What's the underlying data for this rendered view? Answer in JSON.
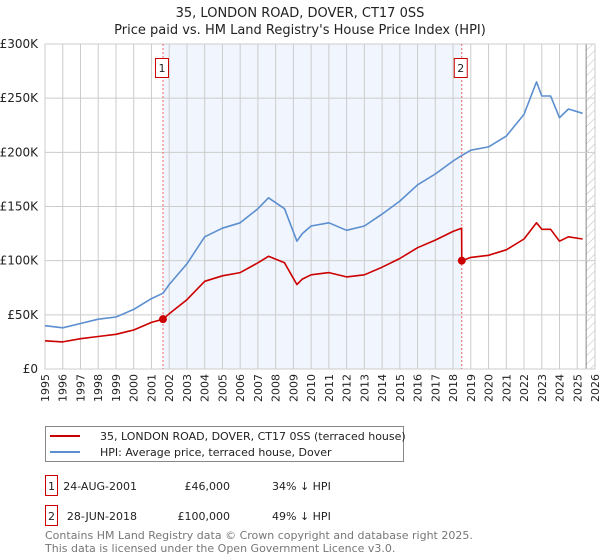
{
  "chart_data": {
    "type": "line",
    "title": "35, LONDON ROAD, DOVER, CT17 0SS",
    "subtitle": "Price paid vs. HM Land Registry's House Price Index (HPI)",
    "xlim": [
      1995,
      2026
    ],
    "ylim": [
      0,
      300000
    ],
    "x_ticks": [
      "1995",
      "1996",
      "1997",
      "1998",
      "1999",
      "2000",
      "2001",
      "2002",
      "2003",
      "2004",
      "2005",
      "2006",
      "2007",
      "2008",
      "2009",
      "2010",
      "2011",
      "2012",
      "2013",
      "2014",
      "2015",
      "2016",
      "2017",
      "2018",
      "2019",
      "2020",
      "2021",
      "2022",
      "2023",
      "2024",
      "2025",
      "2026"
    ],
    "y_ticks": [
      {
        "v": 0,
        "label": "£0"
      },
      {
        "v": 50000,
        "label": "£50K"
      },
      {
        "v": 100000,
        "label": "£100K"
      },
      {
        "v": 150000,
        "label": "£150K"
      },
      {
        "v": 200000,
        "label": "£200K"
      },
      {
        "v": 250000,
        "label": "£250K"
      },
      {
        "v": 300000,
        "label": "£300K"
      }
    ],
    "grid": true,
    "shaded_range": [
      2001.65,
      2018.49
    ],
    "hatched_from": 2025.5,
    "x": [
      1995,
      1996,
      1997,
      1998,
      1999,
      2000,
      2001,
      2001.65,
      2002,
      2003,
      2004,
      2005,
      2006,
      2007,
      2007.6,
      2008.5,
      2009.2,
      2009.5,
      2010,
      2011,
      2012,
      2013,
      2014,
      2015,
      2016,
      2017,
      2018,
      2018.48,
      2018.49,
      2019,
      2020,
      2021,
      2022,
      2022.7,
      2023,
      2023.5,
      2024,
      2024.5,
      2025.3
    ],
    "series": [
      {
        "name": "35, LONDON ROAD, DOVER, CT17 0SS (terraced house)",
        "color": "#cc0000",
        "values": [
          26000,
          25000,
          28000,
          30000,
          32000,
          36000,
          43000,
          46000,
          51000,
          64000,
          81000,
          86000,
          89000,
          98000,
          104000,
          98000,
          78000,
          83000,
          87000,
          89000,
          85000,
          87000,
          94000,
          102000,
          112000,
          119000,
          127000,
          130000,
          100000,
          103000,
          105000,
          110000,
          120000,
          135000,
          129000,
          129000,
          118000,
          122000,
          120000
        ]
      },
      {
        "name": "HPI: Average price, terraced house, Dover",
        "color": "#5b8fd0",
        "values": [
          40000,
          38000,
          42000,
          46000,
          48000,
          55000,
          65000,
          70000,
          78000,
          97000,
          122000,
          130000,
          135000,
          148000,
          158000,
          148000,
          118000,
          125000,
          132000,
          135000,
          128000,
          132000,
          143000,
          155000,
          170000,
          180000,
          192000,
          197000,
          197000,
          202000,
          205000,
          215000,
          235000,
          265000,
          252000,
          252000,
          232000,
          240000,
          236000
        ]
      }
    ],
    "sales": [
      {
        "label": "1",
        "x": 2001.65,
        "value": 46000,
        "date": "24-AUG-2001",
        "price": "£46,000",
        "delta": "34% ↓ HPI"
      },
      {
        "label": "2",
        "x": 2018.49,
        "value": 100000,
        "date": "28-JUN-2018",
        "price": "£100,000",
        "delta": "49% ↓ HPI"
      }
    ],
    "legend_placement": "bottom"
  },
  "footer": {
    "line1": "Contains HM Land Registry data © Crown copyright and database right 2025.",
    "line2": "This data is licensed under the Open Government Licence v3.0."
  }
}
